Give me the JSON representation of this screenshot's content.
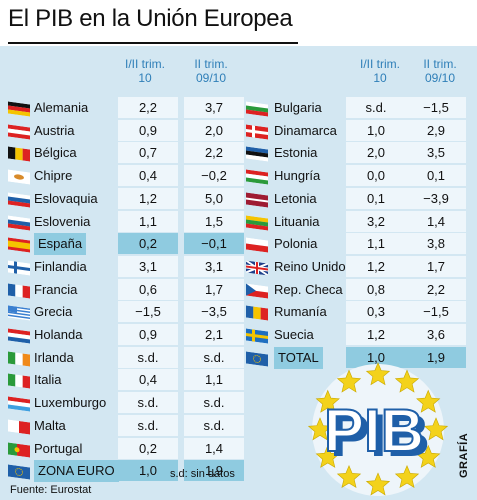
{
  "title": "El PIB en la Unión Europea",
  "headers": {
    "col1": [
      "I/II trim.",
      "10"
    ],
    "col2": [
      "II trim.",
      "09/10"
    ]
  },
  "left_rows": [
    {
      "country": "Alemania",
      "q1": "2,2",
      "q2": "3,7",
      "flag": "germany"
    },
    {
      "country": "Austria",
      "q1": "0,9",
      "q2": "2,0",
      "flag": "austria"
    },
    {
      "country": "Bélgica",
      "q1": "0,7",
      "q2": "2,2",
      "flag": "belgium"
    },
    {
      "country": "Chipre",
      "q1": "0,4",
      "q2": "−0,2",
      "flag": "cyprus"
    },
    {
      "country": "Eslovaquia",
      "q1": "1,2",
      "q2": "5,0",
      "flag": "slovakia"
    },
    {
      "country": "Eslovenia",
      "q1": "1,1",
      "q2": "1,5",
      "flag": "slovenia"
    },
    {
      "country": "España",
      "q1": "0,2",
      "q2": "−0,1",
      "flag": "spain",
      "highlight": true
    },
    {
      "country": "Finlandia",
      "q1": "3,1",
      "q2": "3,1",
      "flag": "finland"
    },
    {
      "country": "Francia",
      "q1": "0,6",
      "q2": "1,7",
      "flag": "france"
    },
    {
      "country": "Grecia",
      "q1": "−1,5",
      "q2": "−3,5",
      "flag": "greece"
    },
    {
      "country": "Holanda",
      "q1": "0,9",
      "q2": "2,1",
      "flag": "netherlands"
    },
    {
      "country": "Irlanda",
      "q1": "s.d.",
      "q2": "s.d.",
      "flag": "ireland"
    },
    {
      "country": "Italia",
      "q1": "0,4",
      "q2": "1,1",
      "flag": "italy"
    },
    {
      "country": "Luxemburgo",
      "q1": "s.d.",
      "q2": "s.d.",
      "flag": "luxembourg"
    },
    {
      "country": "Malta",
      "q1": "s.d.",
      "q2": "s.d.",
      "flag": "malta"
    },
    {
      "country": "Portugal",
      "q1": "0,2",
      "q2": "1,4",
      "flag": "portugal"
    },
    {
      "country": "ZONA EURO",
      "q1": "1,0",
      "q2": "1,9",
      "flag": "eu",
      "highlight": true
    }
  ],
  "right_rows": [
    {
      "country": "Bulgaria",
      "q1": "s.d.",
      "q2": "−1,5",
      "flag": "bulgaria"
    },
    {
      "country": "Dinamarca",
      "q1": "1,0",
      "q2": "2,9",
      "flag": "denmark"
    },
    {
      "country": "Estonia",
      "q1": "2,0",
      "q2": "3,5",
      "flag": "estonia"
    },
    {
      "country": "Hungría",
      "q1": "0,0",
      "q2": "0,1",
      "flag": "hungary"
    },
    {
      "country": "Letonia",
      "q1": "0,1",
      "q2": "−3,9",
      "flag": "latvia"
    },
    {
      "country": "Lituania",
      "q1": "3,2",
      "q2": "1,4",
      "flag": "lithuania"
    },
    {
      "country": "Polonia",
      "q1": "1,1",
      "q2": "3,8",
      "flag": "poland"
    },
    {
      "country": "Reino Unido",
      "q1": "1,2",
      "q2": "1,7",
      "flag": "uk"
    },
    {
      "country": "Rep. Checa",
      "q1": "0,8",
      "q2": "2,2",
      "flag": "czech"
    },
    {
      "country": "Rumanía",
      "q1": "0,3",
      "q2": "−1,5",
      "flag": "romania"
    },
    {
      "country": "Suecia",
      "q1": "1,2",
      "q2": "3,6",
      "flag": "sweden"
    },
    {
      "country": "TOTAL",
      "q1": "1,0",
      "q2": "1,9",
      "flag": "eu",
      "highlight": true
    }
  ],
  "note": "s.d: sin datos",
  "source": "Fuente: Eurostat",
  "credit": "GRAFÍA",
  "emblem_text": "PIB",
  "colors": {
    "background": "#d3e7f2",
    "header_blue": "#2f7fb8",
    "highlight": "#8fcbe0",
    "eu_blue": "#1f5fa8",
    "star_yellow": "#f3d21b"
  }
}
